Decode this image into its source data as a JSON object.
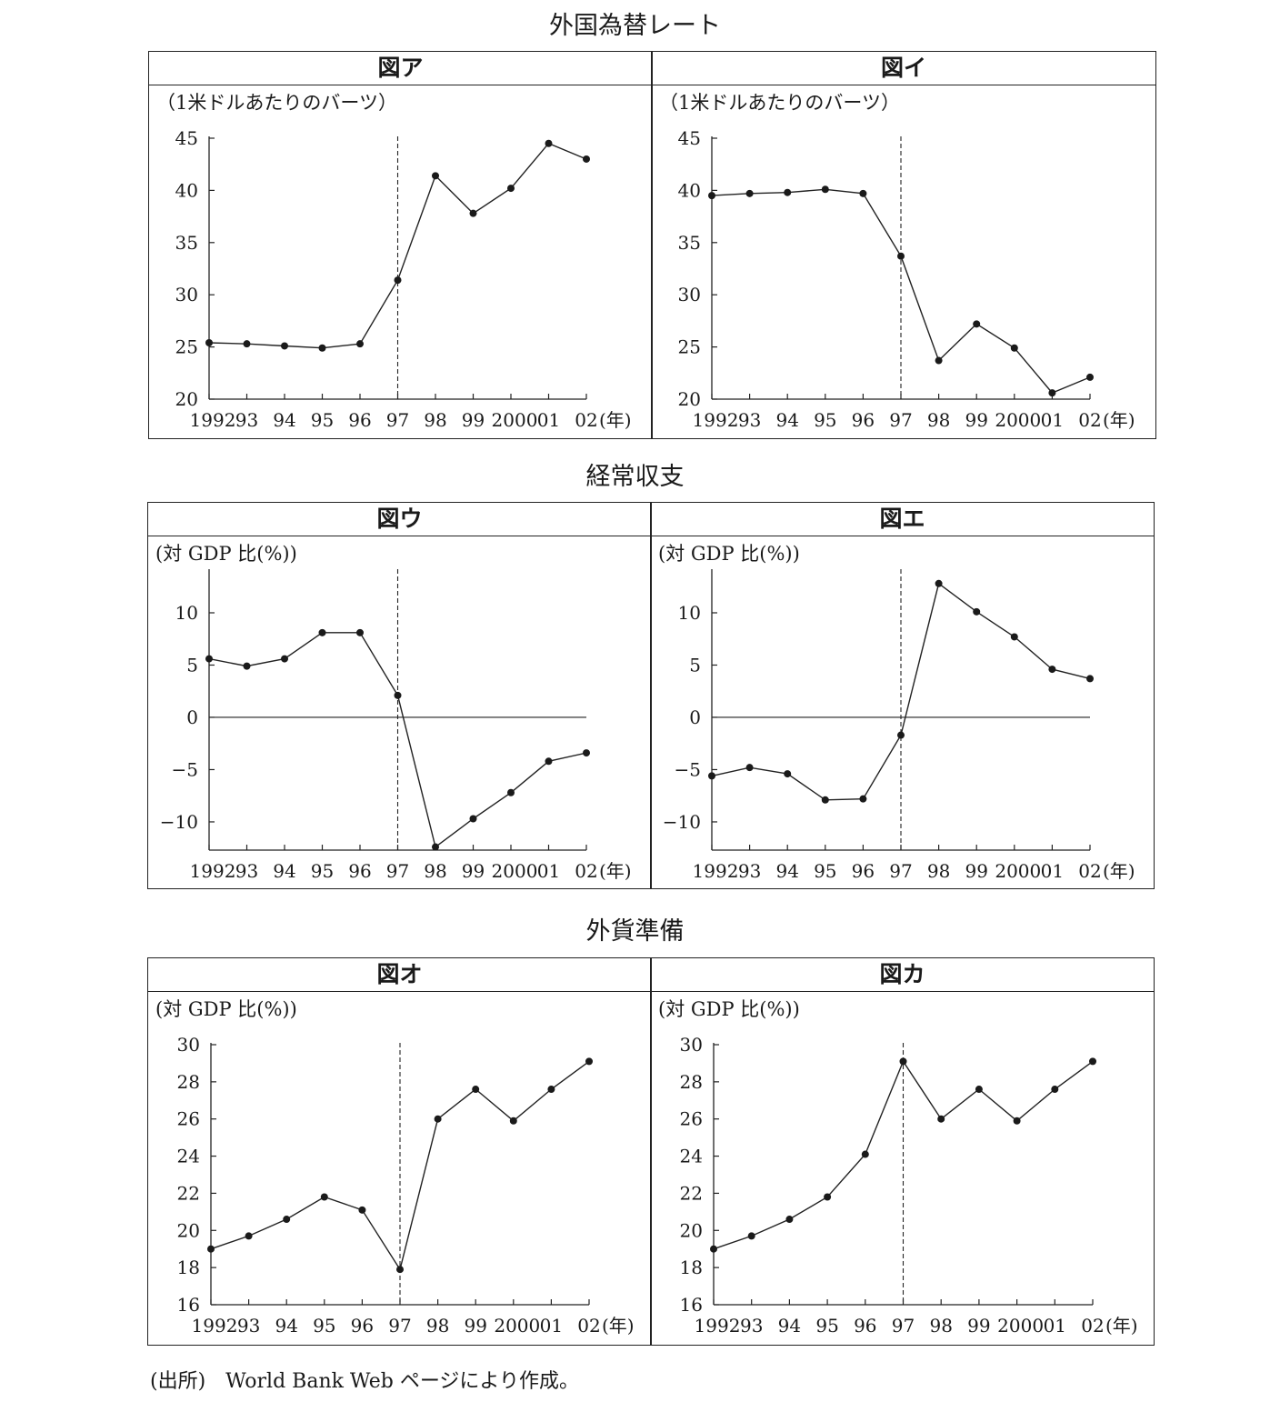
{
  "sections": [
    {
      "title": "外国為替レート"
    },
    {
      "title": "経常収支"
    },
    {
      "title": "外貨準備"
    }
  ],
  "source_note": "(出所)　World Bank Web ページにより作成。",
  "chart_data": [
    {
      "type": "line",
      "panel_title": "図ア",
      "unit_label": "（1米ドルあたりのバーツ）",
      "x_tick_labels": [
        "1992",
        "93",
        "94",
        "95",
        "96",
        "97",
        "98",
        "99",
        "2000",
        "01",
        "02"
      ],
      "x_unit": "(年)",
      "y_ticks": [
        20,
        25,
        30,
        35,
        40,
        45
      ],
      "ylim": [
        20,
        45
      ],
      "values": [
        25.4,
        25.3,
        25.1,
        24.9,
        25.3,
        31.4,
        41.4,
        37.8,
        40.2,
        44.5,
        43.0
      ],
      "marker_year_index": 5,
      "zero_line": false
    },
    {
      "type": "line",
      "panel_title": "図イ",
      "unit_label": "（1米ドルあたりのバーツ）",
      "x_tick_labels": [
        "1992",
        "93",
        "94",
        "95",
        "96",
        "97",
        "98",
        "99",
        "2000",
        "01",
        "02"
      ],
      "x_unit": "(年)",
      "y_ticks": [
        20,
        25,
        30,
        35,
        40,
        45
      ],
      "ylim": [
        20,
        45
      ],
      "values": [
        39.5,
        39.7,
        39.8,
        40.1,
        39.7,
        33.7,
        23.7,
        27.2,
        24.9,
        20.6,
        22.1
      ],
      "marker_year_index": 5,
      "zero_line": false
    },
    {
      "type": "line",
      "panel_title": "図ウ",
      "unit_label": "(対 GDP 比(%))",
      "x_tick_labels": [
        "1992",
        "93",
        "94",
        "95",
        "96",
        "97",
        "98",
        "99",
        "2000",
        "01",
        "02"
      ],
      "x_unit": "(年)",
      "y_ticks": [
        -10,
        -5,
        0,
        5,
        10
      ],
      "y_tick_labels": [
        "−10",
        "−5",
        "0",
        "5",
        "10"
      ],
      "ylim": [
        -12.7,
        14
      ],
      "values": [
        5.6,
        4.9,
        5.6,
        8.1,
        8.1,
        2.1,
        -12.4,
        -9.7,
        -7.2,
        -4.2,
        -3.4
      ],
      "marker_year_index": 5,
      "zero_line": true
    },
    {
      "type": "line",
      "panel_title": "図エ",
      "unit_label": "(対 GDP 比(%))",
      "x_tick_labels": [
        "1992",
        "93",
        "94",
        "95",
        "96",
        "97",
        "98",
        "99",
        "2000",
        "01",
        "02"
      ],
      "x_unit": "(年)",
      "y_ticks": [
        -10,
        -5,
        0,
        5,
        10
      ],
      "y_tick_labels": [
        "−10",
        "−5",
        "0",
        "5",
        "10"
      ],
      "ylim": [
        -12.7,
        14
      ],
      "values": [
        -5.6,
        -4.8,
        -5.4,
        -7.9,
        -7.8,
        -1.7,
        12.8,
        10.1,
        7.7,
        4.6,
        3.7
      ],
      "marker_year_index": 5,
      "zero_line": true
    },
    {
      "type": "line",
      "panel_title": "図オ",
      "unit_label": "(対 GDP 比(%))",
      "x_tick_labels": [
        "1992",
        "93",
        "94",
        "95",
        "96",
        "97",
        "98",
        "99",
        "2000",
        "01",
        "02"
      ],
      "x_unit": "(年)",
      "y_ticks": [
        16,
        18,
        20,
        22,
        24,
        26,
        28,
        30
      ],
      "ylim": [
        16,
        30
      ],
      "values": [
        19.0,
        19.7,
        20.6,
        21.8,
        21.1,
        17.9,
        26.0,
        27.6,
        25.9,
        27.6,
        29.1
      ],
      "marker_year_index": 5,
      "zero_line": false
    },
    {
      "type": "line",
      "panel_title": "図カ",
      "unit_label": "(対 GDP 比(%))",
      "x_tick_labels": [
        "1992",
        "93",
        "94",
        "95",
        "96",
        "97",
        "98",
        "99",
        "2000",
        "01",
        "02"
      ],
      "x_unit": "(年)",
      "y_ticks": [
        16,
        18,
        20,
        22,
        24,
        26,
        28,
        30
      ],
      "ylim": [
        16,
        30
      ],
      "values": [
        19.0,
        19.7,
        20.6,
        21.8,
        24.1,
        29.1,
        26.0,
        27.6,
        25.9,
        27.6,
        29.1
      ],
      "marker_year_index": 5,
      "zero_line": false
    }
  ]
}
